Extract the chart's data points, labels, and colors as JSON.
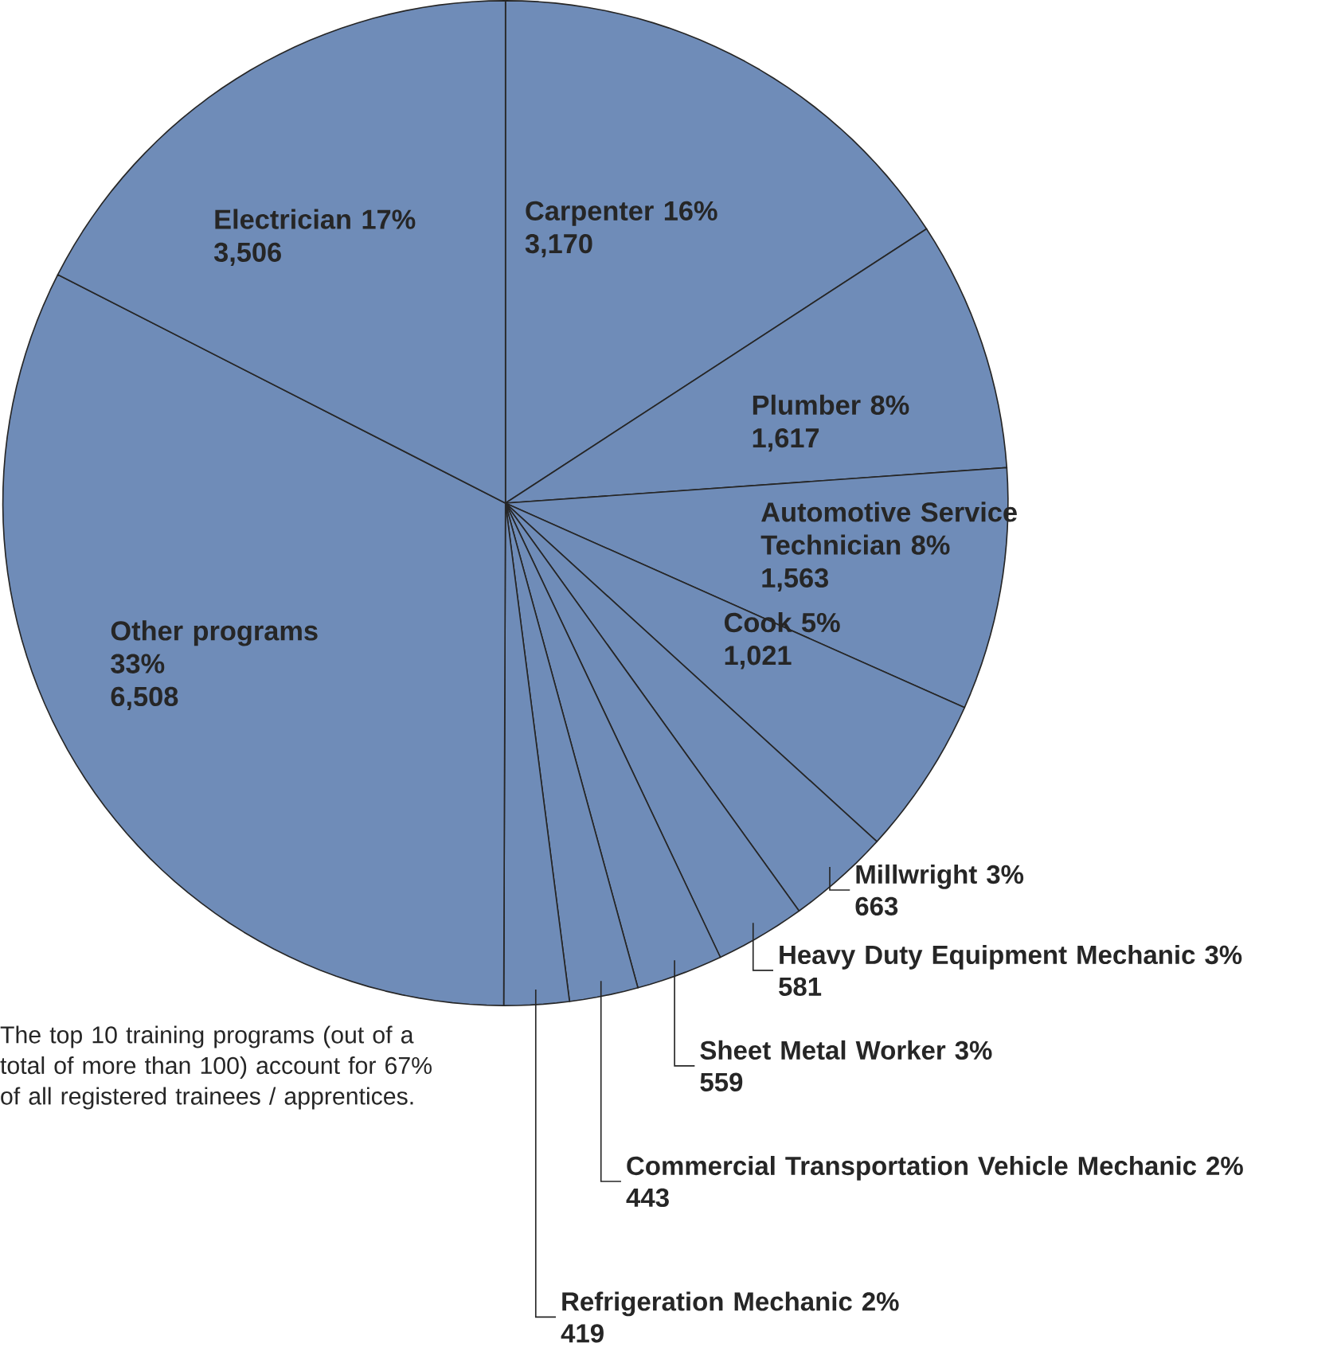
{
  "chart_data": {
    "type": "pie",
    "categories": [
      "Carpenter 16%",
      "Plumber 8%",
      "Automotive Service Technician 8%",
      "Cook 5%",
      "Millwright 3%",
      "Heavy Duty Equipment Mechanic 3%",
      "Sheet Metal Worker 3%",
      "Commercial Transportation Vehicle Mechanic 2%",
      "Refrigeration Mechanic 2%",
      "Other programs 33%",
      "Electrician 17%"
    ],
    "values": [
      3170,
      1617,
      1563,
      1021,
      663,
      581,
      559,
      443,
      419,
      6508,
      3506
    ],
    "value_labels": [
      "3,170",
      "1,617",
      "1,563",
      "1,021",
      "663",
      "581",
      "559",
      "443",
      "419",
      "6,508",
      "3,506"
    ],
    "colors": [
      "#6f8cb8",
      "#6f8cb8",
      "#6f8cb8",
      "#6f8cb8",
      "#6f8cb8",
      "#6f8cb8",
      "#6f8cb8",
      "#6f8cb8",
      "#6f8cb8",
      "#6f8cb8",
      "#6f8cb8"
    ],
    "annotations": [
      "The top 10 training programs (out of a total of more than 100) account for 67% of all registered trainees / apprentices."
    ]
  }
}
